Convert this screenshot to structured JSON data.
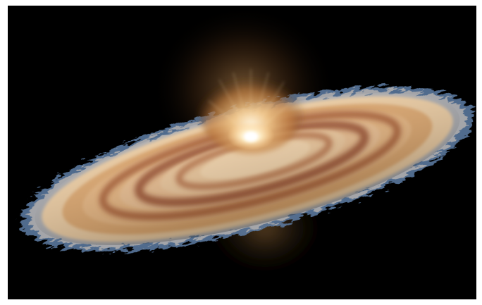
{
  "image": {
    "subject": "",
    "background_color": "#000000",
    "frame_color": "#ffffff",
    "palette": {
      "disk_outer_blue": "#6f8fb8",
      "disk_cream": "#f2d2a6",
      "disk_orange": "#d28a4d",
      "disk_rust": "#8c3d1c",
      "core_glow": "#fff3d8",
      "halo": "#c78a46"
    }
  }
}
